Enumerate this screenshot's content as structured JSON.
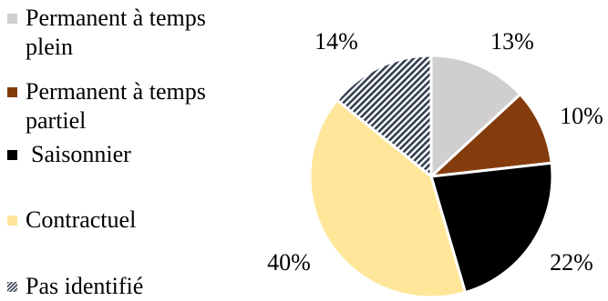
{
  "chart_data": {
    "type": "pie",
    "categories": [
      "Permanent à temps plein",
      "Permanent à temps partiel",
      "Saisonnier",
      "Contractuel",
      "Pas identifié"
    ],
    "values": [
      13,
      10,
      22,
      40,
      14
    ],
    "value_labels": [
      "13%",
      "10%",
      "22%",
      "40%",
      "14%"
    ],
    "colors": [
      "#d0cece",
      "#843c0c",
      "#000000",
      "#ffe699",
      "#333f50"
    ],
    "patterns": [
      "solid",
      "solid",
      "solid",
      "solid",
      "hatched"
    ],
    "start_angle_deg": 0,
    "direction": "clockwise",
    "legend_position": "left"
  }
}
